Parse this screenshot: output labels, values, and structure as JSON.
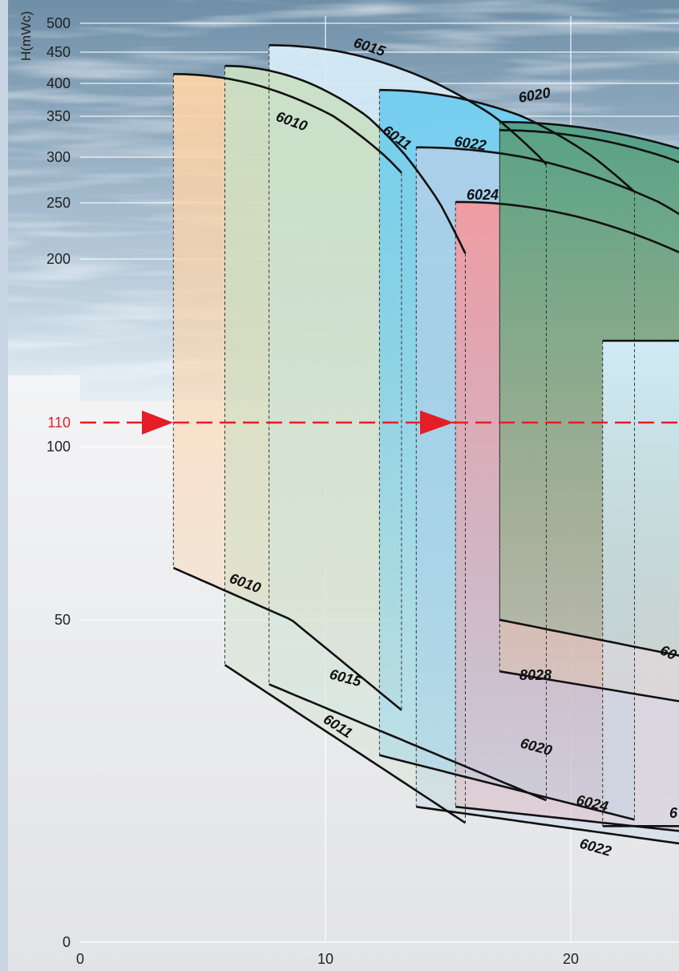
{
  "chart_data": {
    "type": "line",
    "ylabel": "H(mWc)",
    "xlim": [
      0,
      25
    ],
    "y_ticks": [
      "500",
      "450",
      "400",
      "350",
      "300",
      "250",
      "200",
      "110",
      "100",
      "50",
      "0"
    ],
    "x_ticks": [
      "0",
      "10",
      "20"
    ],
    "reference_line": {
      "label": "110",
      "value": 110,
      "color": "#e41e26"
    },
    "pumps": [
      {
        "name": "6010",
        "color": "#fcd3a8",
        "x": [
          3.8,
          13.1
        ],
        "upper_h": [
          415,
          283
        ],
        "lower_h": [
          65,
          36
        ]
      },
      {
        "name": "6015",
        "color": "#d7ecf8",
        "x": [
          7.7,
          19.0
        ],
        "upper_h": [
          462,
          292
        ],
        "lower_h": [
          40,
          22
        ]
      },
      {
        "name": "6011",
        "color": "#c9dfc4",
        "x": [
          5.9,
          15.7
        ],
        "upper_h": [
          428,
          205
        ],
        "lower_h": [
          43,
          18.5
        ]
      },
      {
        "name": "6020",
        "color": "#6fcdef",
        "x": [
          12.2,
          22.6
        ],
        "upper_h": [
          390,
          262
        ],
        "lower_h": [
          29,
          19
        ]
      },
      {
        "name": "6022",
        "color": "#aecfe9",
        "x": [
          13.7,
          25
        ],
        "upper_h": [
          312,
          232
        ],
        "lower_h": [
          21,
          15
        ]
      },
      {
        "name": "6024",
        "color": "#f29aa0",
        "x": [
          15.3,
          25
        ],
        "upper_h": [
          251,
          200
        ],
        "lower_h": [
          21,
          17
        ]
      },
      {
        "name": "8028",
        "color": "#e8c58c",
        "x": [
          17.1,
          25
        ],
        "upper_h": [
          333,
          288
        ],
        "lower_h": [
          42,
          37
        ]
      },
      {
        "name": "60",
        "color": "#52a085",
        "x": [
          17.1,
          25
        ],
        "upper_h": [
          343,
          305
        ],
        "lower_h": [
          50,
          44
        ]
      },
      {
        "name": "6",
        "color": "#d4eefb",
        "x": [
          21.3,
          25
        ],
        "upper_h": [
          155,
          155
        ],
        "lower_h": [
          18,
          18
        ]
      }
    ],
    "labels": [
      {
        "text": "6015"
      },
      {
        "text": "6010"
      },
      {
        "text": "6011"
      },
      {
        "text": "6020"
      },
      {
        "text": "6022"
      },
      {
        "text": "6024"
      },
      {
        "text": "6010"
      },
      {
        "text": "6015"
      },
      {
        "text": "6011"
      },
      {
        "text": "8028"
      },
      {
        "text": "6020"
      },
      {
        "text": "6024"
      },
      {
        "text": "6022"
      },
      {
        "text": "60"
      },
      {
        "text": "6"
      }
    ],
    "grid": true
  }
}
